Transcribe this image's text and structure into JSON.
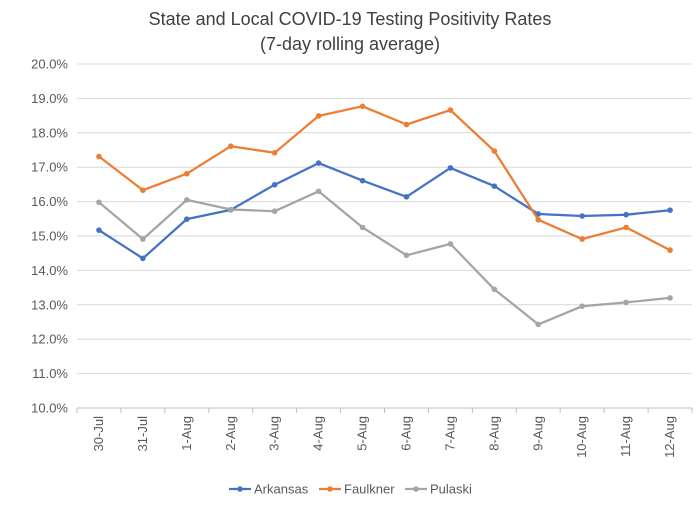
{
  "chart_data": {
    "type": "line",
    "title": "State and Local COVID-19 Testing Positivity Rates",
    "subtitle": "(7-day rolling average)",
    "xlabel": "",
    "ylabel": "",
    "categories": [
      "30-Jul",
      "31-Jul",
      "1-Aug",
      "2-Aug",
      "3-Aug",
      "4-Aug",
      "5-Aug",
      "6-Aug",
      "7-Aug",
      "8-Aug",
      "9-Aug",
      "10-Aug",
      "11-Aug",
      "12-Aug"
    ],
    "ylim": [
      10.0,
      20.0
    ],
    "yticks": [
      "10.0%",
      "11.0%",
      "12.0%",
      "13.0%",
      "14.0%",
      "15.0%",
      "16.0%",
      "17.0%",
      "18.0%",
      "19.0%",
      "20.0%"
    ],
    "grid": true,
    "legend_position": "bottom",
    "series": [
      {
        "name": "Arkansas",
        "color": "#4472C4",
        "values": [
          15.17,
          14.35,
          15.49,
          15.76,
          16.49,
          17.12,
          16.61,
          16.14,
          16.98,
          16.45,
          15.64,
          15.58,
          15.62,
          15.75
        ]
      },
      {
        "name": "Faulkner",
        "color": "#ED7D31",
        "values": [
          17.31,
          16.33,
          16.81,
          17.61,
          17.42,
          18.49,
          18.77,
          18.24,
          18.66,
          17.47,
          15.47,
          14.91,
          15.25,
          14.59
        ]
      },
      {
        "name": "Pulaski",
        "color": "#A5A5A5",
        "values": [
          15.98,
          14.91,
          16.05,
          15.77,
          15.72,
          16.3,
          15.25,
          14.44,
          14.77,
          13.45,
          12.43,
          12.96,
          13.07,
          13.2
        ]
      }
    ]
  }
}
